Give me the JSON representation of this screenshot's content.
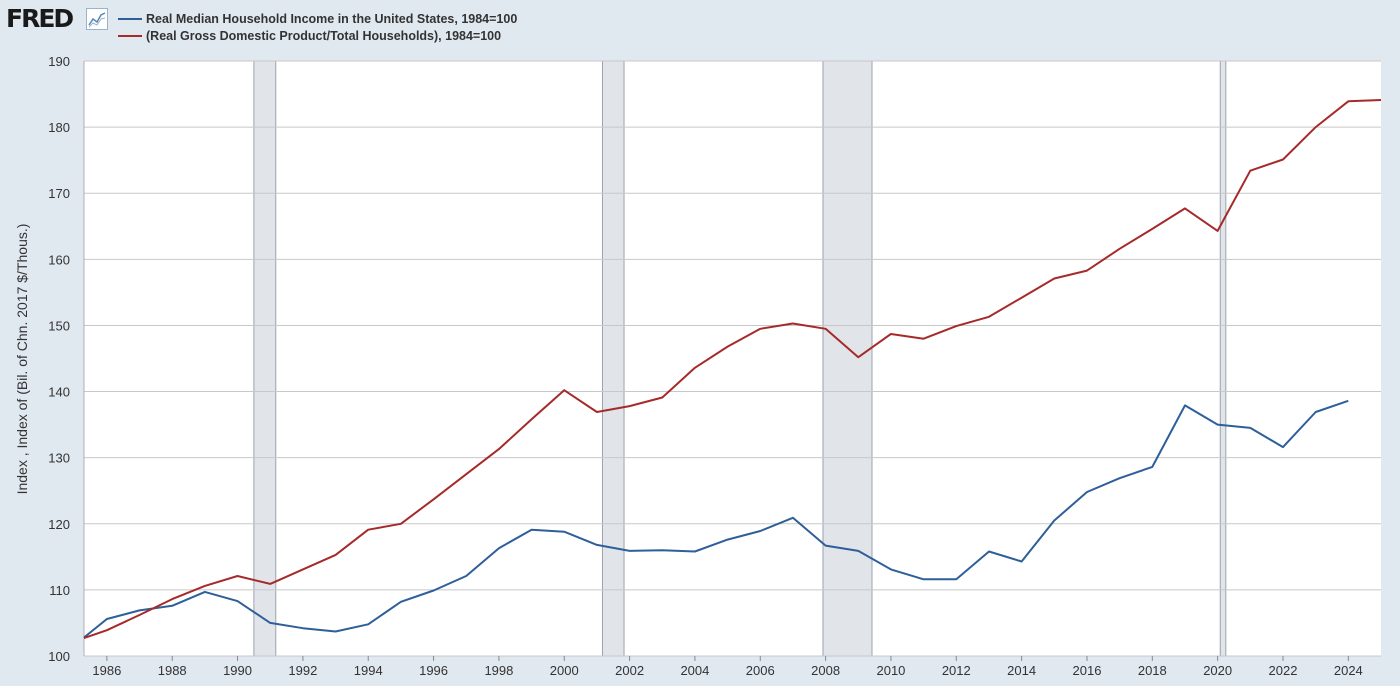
{
  "header": {
    "logo_text": "FRED",
    "logo_icon": "line-chart-icon"
  },
  "chart_data": {
    "type": "line",
    "title": "",
    "xlabel": "",
    "ylabel": "Index , Index of (Bil. of Chn. 2017 $/Thous.)",
    "ylim": [
      100,
      190
    ],
    "xlim": [
      1985.3,
      2025
    ],
    "grid": true,
    "legend_position": "top-left",
    "y_ticks": [
      "100",
      "110",
      "120",
      "130",
      "140",
      "150",
      "160",
      "170",
      "180",
      "190"
    ],
    "x_ticks": [
      "1986",
      "1988",
      "1990",
      "1992",
      "1994",
      "1996",
      "1998",
      "2000",
      "2002",
      "2004",
      "2006",
      "2008",
      "2010",
      "2012",
      "2014",
      "2016",
      "2018",
      "2020",
      "2022",
      "2024"
    ],
    "recessions": [
      {
        "start": 1990.5,
        "end": 1991.17
      },
      {
        "start": 2001.17,
        "end": 2001.83
      },
      {
        "start": 2007.92,
        "end": 2009.42
      },
      {
        "start": 2020.08,
        "end": 2020.25
      }
    ],
    "series": [
      {
        "name": "Real Median Household Income in the United States, 1984=100",
        "color": "#2e5f99",
        "x": [
          1985.3,
          1986,
          1987,
          1988,
          1989,
          1990,
          1991,
          1992,
          1993,
          1994,
          1995,
          1996,
          1997,
          1998,
          1999,
          2000,
          2001,
          2002,
          2003,
          2004,
          2005,
          2006,
          2007,
          2008,
          2009,
          2010,
          2011,
          2012,
          2013,
          2014,
          2015,
          2016,
          2017,
          2018,
          2019,
          2020,
          2021,
          2022,
          2023,
          2024
        ],
        "values": [
          102.8,
          105.6,
          106.9,
          107.6,
          109.7,
          108.3,
          105.0,
          104.2,
          103.7,
          104.8,
          108.2,
          109.9,
          112.1,
          116.3,
          119.1,
          118.8,
          116.8,
          115.9,
          116.0,
          115.8,
          117.6,
          118.9,
          120.9,
          116.7,
          115.9,
          113.1,
          111.6,
          111.6,
          115.8,
          114.3,
          120.5,
          124.8,
          126.9,
          128.6,
          137.9,
          135.0,
          134.5,
          131.6,
          136.9,
          138.6
        ]
      },
      {
        "name": "(Real Gross Domestic Product/Total Households), 1984=100",
        "color": "#a62a2a",
        "x": [
          1985.3,
          1986,
          1987,
          1988,
          1989,
          1990,
          1991,
          1992,
          1993,
          1994,
          1995,
          1996,
          1997,
          1998,
          1999,
          2000,
          2001,
          2002,
          2003,
          2004,
          2005,
          2006,
          2007,
          2008,
          2009,
          2010,
          2011,
          2012,
          2013,
          2014,
          2015,
          2016,
          2017,
          2018,
          2019,
          2020,
          2021,
          2022,
          2023,
          2024,
          2025
        ],
        "values": [
          102.7,
          103.9,
          106.2,
          108.6,
          110.6,
          112.1,
          110.9,
          113.1,
          115.3,
          119.1,
          120.0,
          123.7,
          127.5,
          131.3,
          135.8,
          140.2,
          136.9,
          137.8,
          139.1,
          143.6,
          146.8,
          149.5,
          150.3,
          149.5,
          145.2,
          148.7,
          148.0,
          149.9,
          151.3,
          154.2,
          157.1,
          158.3,
          161.6,
          164.6,
          167.7,
          164.3,
          173.4,
          175.1,
          180.0,
          183.9,
          184.1
        ]
      }
    ]
  }
}
